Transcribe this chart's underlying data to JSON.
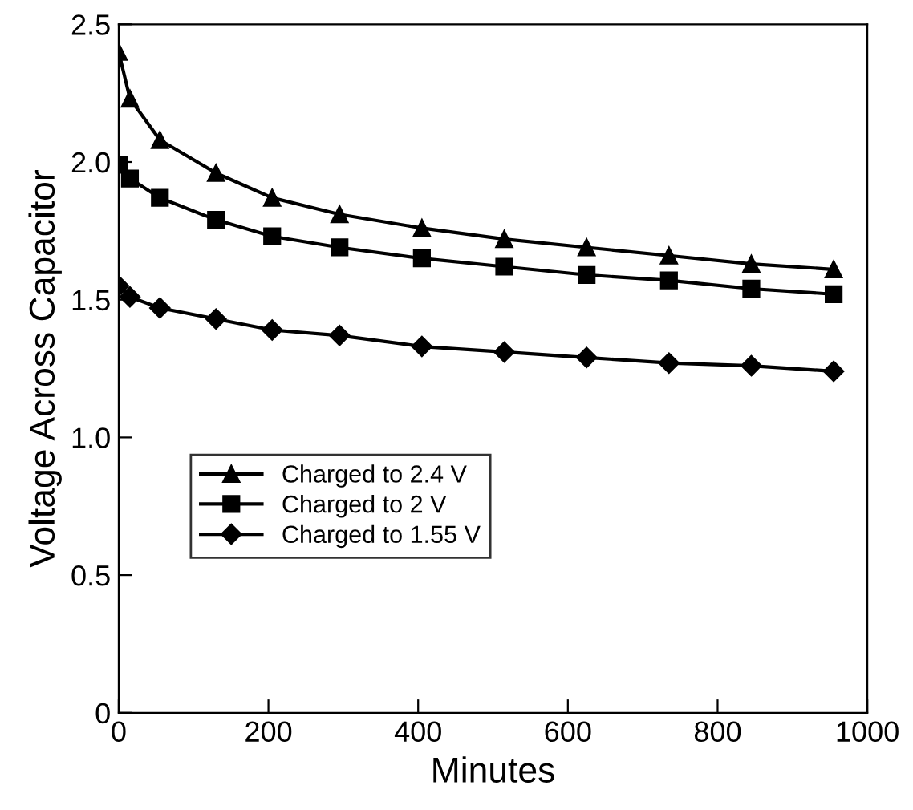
{
  "chart_data": {
    "type": "line",
    "xlabel": "Minutes",
    "ylabel": "Voltage Across Capacitor",
    "x": [
      0,
      15,
      55,
      130,
      205,
      295,
      405,
      515,
      625,
      735,
      845,
      955
    ],
    "series": [
      {
        "name": "Charged to 2.4 V",
        "color": "#000000",
        "marker": "triangle",
        "values": [
          2.4,
          2.23,
          2.08,
          1.96,
          1.87,
          1.81,
          1.76,
          1.72,
          1.69,
          1.66,
          1.63,
          1.61
        ]
      },
      {
        "name": "Charged to 2 V",
        "color": "#000000",
        "marker": "square",
        "values": [
          1.99,
          1.94,
          1.87,
          1.79,
          1.73,
          1.69,
          1.65,
          1.62,
          1.59,
          1.57,
          1.54,
          1.52
        ]
      },
      {
        "name": "Charged to 1.55 V",
        "color": "#000000",
        "marker": "diamond",
        "values": [
          1.55,
          1.51,
          1.47,
          1.43,
          1.39,
          1.37,
          1.33,
          1.31,
          1.29,
          1.27,
          1.26,
          1.24
        ]
      }
    ],
    "xlim": [
      0,
      1000
    ],
    "xticks": [
      0,
      200,
      400,
      600,
      800,
      1000
    ],
    "ylim": [
      0,
      2.5
    ],
    "yticks": [
      0,
      {
        "value": 0.5,
        "label": "0.5"
      },
      {
        "value": 1.0,
        "label": "1.0"
      },
      {
        "value": 1.5,
        "label": "1.5"
      },
      {
        "value": 2.0,
        "label": "2.0"
      },
      {
        "value": 2.5,
        "label": "2.5"
      }
    ],
    "legend": "center left",
    "grid": false,
    "line_style": "solid"
  }
}
